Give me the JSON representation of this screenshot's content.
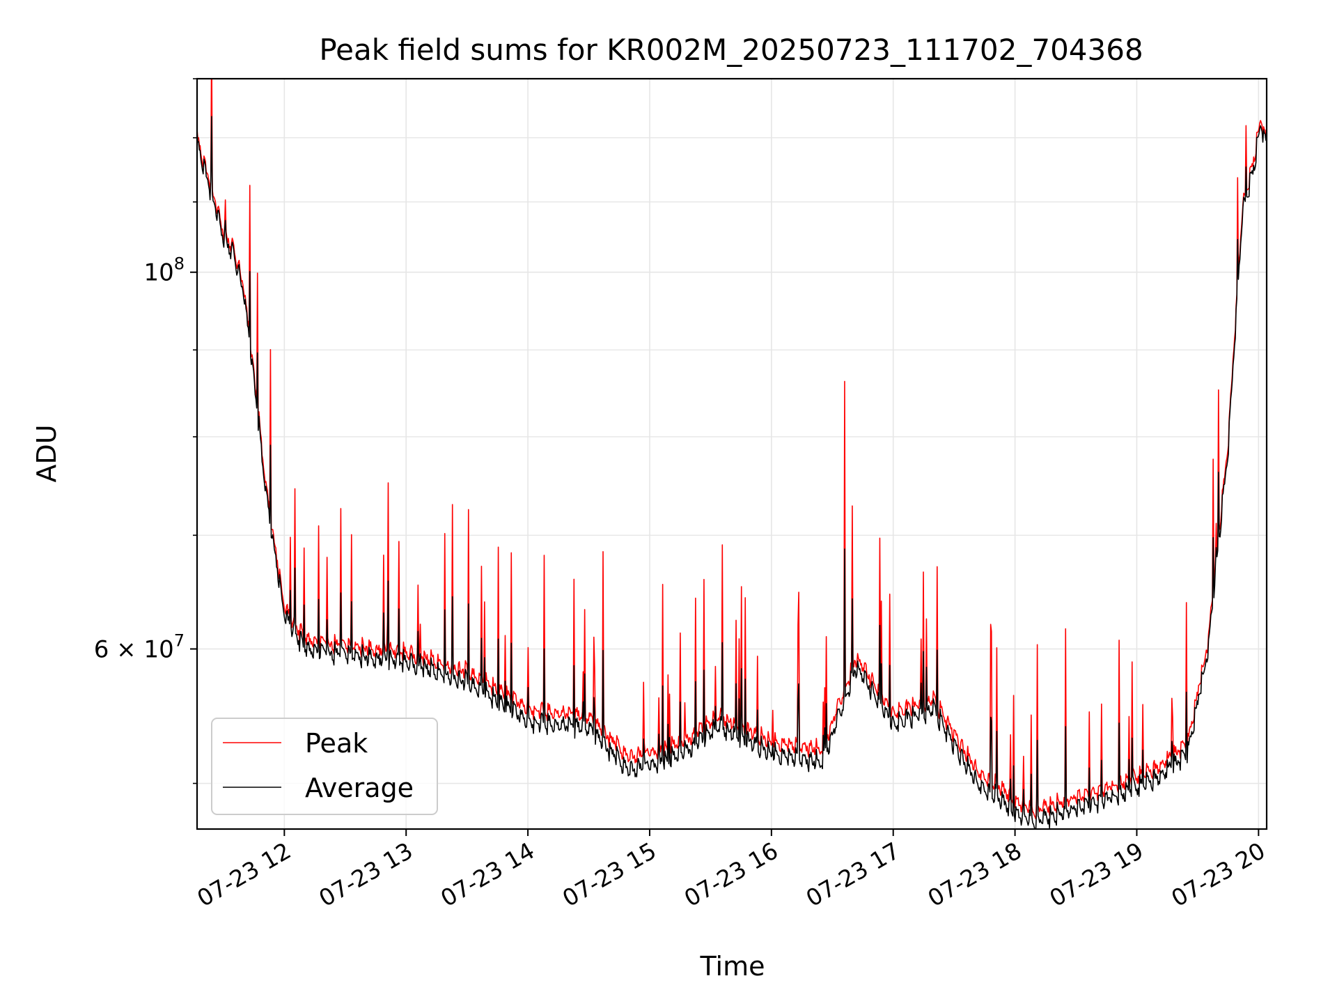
{
  "chart_data": {
    "type": "line",
    "title": "Peak field sums for KR002M_20250723_111702_704368",
    "xlabel": "Time",
    "ylabel": "ADU",
    "y_scale": "log",
    "ylim": [
      47000000,
      130000000
    ],
    "xlim": [
      "2025-07-23 11:17",
      "2025-07-23 20:04"
    ],
    "x_ticks": [
      "07-23 12",
      "07-23 13",
      "07-23 14",
      "07-23 15",
      "07-23 16",
      "07-23 17",
      "07-23 18",
      "07-23 19",
      "07-23 20"
    ],
    "y_ticks": [
      {
        "value": 60000000,
        "label": "6 × 10",
        "exp": "7"
      },
      {
        "value": 100000000,
        "label": "10",
        "exp": "8"
      }
    ],
    "grid": true,
    "legend": {
      "position": "lower-left"
    },
    "x": [
      "2025-07-23 11:17",
      "2025-07-23 11:25",
      "2025-07-23 11:30",
      "2025-07-23 11:35",
      "2025-07-23 11:40",
      "2025-07-23 11:45",
      "2025-07-23 11:50",
      "2025-07-23 11:55",
      "2025-07-23 12:00",
      "2025-07-23 12:05",
      "2025-07-23 12:10",
      "2025-07-23 12:15",
      "2025-07-23 12:30",
      "2025-07-23 13:00",
      "2025-07-23 13:30",
      "2025-07-23 14:00",
      "2025-07-23 14:30",
      "2025-07-23 14:50",
      "2025-07-23 15:15",
      "2025-07-23 15:35",
      "2025-07-23 16:00",
      "2025-07-23 16:25",
      "2025-07-23 16:42",
      "2025-07-23 17:00",
      "2025-07-23 17:20",
      "2025-07-23 17:40",
      "2025-07-23 18:00",
      "2025-07-23 18:10",
      "2025-07-23 18:30",
      "2025-07-23 18:50",
      "2025-07-23 19:10",
      "2025-07-23 19:25",
      "2025-07-23 19:35",
      "2025-07-23 19:45",
      "2025-07-23 19:52",
      "2025-07-23 19:58",
      "2025-07-23 20:01",
      "2025-07-23 20:04"
    ],
    "series": [
      {
        "name": "Peak",
        "color": "#ff0000",
        "values": [
          121000000,
          112000000,
          106500000,
          104000000,
          99000000,
          88000000,
          77000000,
          70000000,
          64000000,
          62500000,
          61500000,
          61000000,
          60800000,
          60200000,
          58700000,
          55800000,
          55200000,
          52200000,
          53200000,
          55200000,
          53300000,
          52800000,
          59800000,
          55500000,
          56500000,
          51500000,
          49300000,
          48600000,
          49500000,
          50300000,
          51500000,
          53300000,
          61000000,
          80000000,
          110000000,
          118000000,
          124000000,
          121000000
        ]
      },
      {
        "name": "Average",
        "color": "#000000",
        "values": [
          120500000,
          111500000,
          106000000,
          103500000,
          98500000,
          87500000,
          76500000,
          69500000,
          63500000,
          62000000,
          60800000,
          60400000,
          60200000,
          59600000,
          58000000,
          55000000,
          54500000,
          51400000,
          52500000,
          54600000,
          52600000,
          52000000,
          59200000,
          54800000,
          55900000,
          50800000,
          48600000,
          48000000,
          48900000,
          49700000,
          50900000,
          52700000,
          60500000,
          79500000,
          109500000,
          117000000,
          123500000,
          120500000
        ]
      }
    ]
  }
}
